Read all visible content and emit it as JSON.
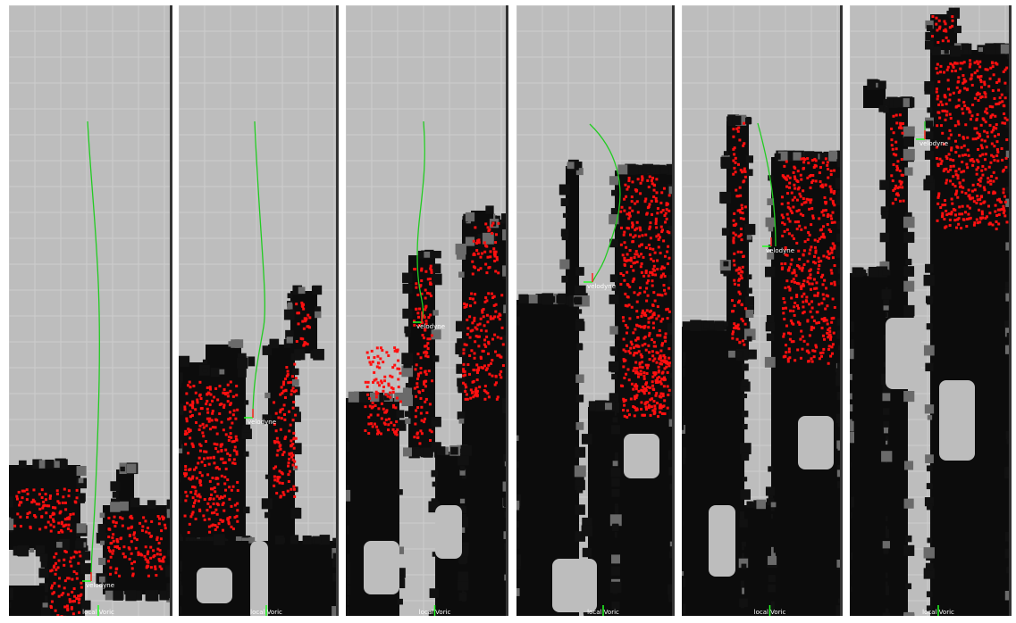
{
  "panels": [
    {
      "robot_label": "velodyne",
      "frame_label": "local Voric"
    },
    {
      "robot_label": "velodyne",
      "frame_label": "local Voric"
    },
    {
      "robot_label": "velodyne",
      "frame_label": "local Voric"
    },
    {
      "robot_label": "velodyne",
      "frame_label": "local Voric"
    },
    {
      "robot_label": "velodyne",
      "frame_label": "local Voric"
    },
    {
      "robot_label": "velodyne",
      "frame_label": "local Voric"
    }
  ]
}
